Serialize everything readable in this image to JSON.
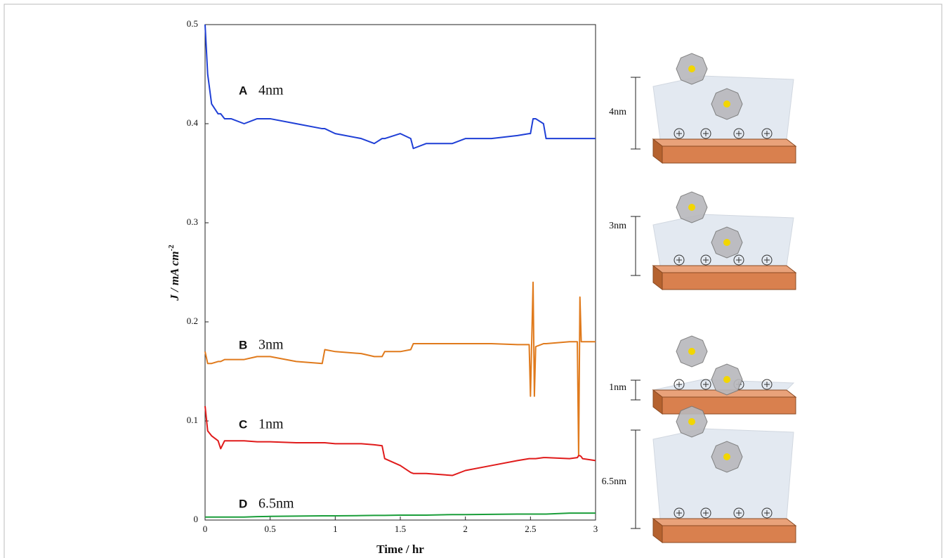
{
  "chart_data": {
    "type": "line",
    "x_label": "Time / hr",
    "y_label": "J / mA cm",
    "y_label_sup": "-2",
    "xlim": [
      0,
      3
    ],
    "ylim": [
      0,
      0.5
    ],
    "xticks": [
      0,
      0.5,
      1,
      1.5,
      2,
      2.5,
      3
    ],
    "yticks": [
      0,
      0.1,
      0.2,
      0.3,
      0.4,
      0.5
    ],
    "grid": false,
    "x": [
      0,
      0.02,
      0.05,
      0.1,
      0.12,
      0.15,
      0.2,
      0.3,
      0.4,
      0.5,
      0.7,
      0.9,
      0.92,
      1.0,
      1.2,
      1.3,
      1.36,
      1.38,
      1.5,
      1.58,
      1.6,
      1.7,
      1.9,
      2.0,
      2.2,
      2.4,
      2.49,
      2.5,
      2.52,
      2.53,
      2.54,
      2.6,
      2.62,
      2.8,
      2.86,
      2.87,
      2.88,
      2.89,
      2.9,
      3.0
    ],
    "series": [
      {
        "name": "A",
        "label": "4nm",
        "color": "#1f3fd6",
        "values": [
          0.5,
          0.45,
          0.42,
          0.41,
          0.41,
          0.405,
          0.405,
          0.4,
          0.405,
          0.405,
          0.4,
          0.395,
          0.395,
          0.39,
          0.385,
          0.38,
          0.385,
          0.385,
          0.39,
          0.385,
          0.375,
          0.38,
          0.38,
          0.385,
          0.385,
          0.388,
          0.39,
          0.39,
          0.405,
          0.405,
          0.405,
          0.4,
          0.385,
          0.385,
          0.385,
          0.385,
          0.385,
          0.385,
          0.385,
          0.385
        ]
      },
      {
        "name": "B",
        "label": "3nm",
        "color": "#e07a1c",
        "values": [
          0.17,
          0.158,
          0.158,
          0.16,
          0.16,
          0.162,
          0.162,
          0.162,
          0.165,
          0.165,
          0.16,
          0.158,
          0.172,
          0.17,
          0.168,
          0.165,
          0.165,
          0.17,
          0.17,
          0.172,
          0.178,
          0.178,
          0.178,
          0.178,
          0.178,
          0.177,
          0.177,
          0.125,
          0.24,
          0.125,
          0.175,
          0.178,
          0.178,
          0.18,
          0.18,
          0.065,
          0.225,
          0.18,
          0.18,
          0.18
        ]
      },
      {
        "name": "C",
        "label": "1nm",
        "color": "#e01b1b",
        "values": [
          0.115,
          0.09,
          0.085,
          0.08,
          0.072,
          0.08,
          0.08,
          0.08,
          0.079,
          0.079,
          0.078,
          0.078,
          0.078,
          0.077,
          0.077,
          0.076,
          0.075,
          0.062,
          0.055,
          0.048,
          0.047,
          0.047,
          0.045,
          0.05,
          0.055,
          0.06,
          0.062,
          0.062,
          0.062,
          0.062,
          0.062,
          0.063,
          0.063,
          0.062,
          0.063,
          0.065,
          0.065,
          0.064,
          0.062,
          0.06
        ]
      },
      {
        "name": "D",
        "label": "6.5nm",
        "color": "#1a9e3a",
        "values": [
          0.003,
          0.003,
          0.003,
          0.003,
          0.003,
          0.003,
          0.003,
          0.003,
          0.0035,
          0.0037,
          0.004,
          0.0043,
          0.0043,
          0.0043,
          0.0045,
          0.0047,
          0.0047,
          0.0047,
          0.005,
          0.005,
          0.005,
          0.005,
          0.0055,
          0.0055,
          0.0058,
          0.006,
          0.006,
          0.006,
          0.006,
          0.006,
          0.006,
          0.006,
          0.006,
          0.007,
          0.007,
          0.007,
          0.007,
          0.007,
          0.007,
          0.007
        ]
      }
    ]
  },
  "schematic": {
    "labels": [
      "4nm",
      "3nm",
      "1nm",
      "6.5nm"
    ]
  }
}
